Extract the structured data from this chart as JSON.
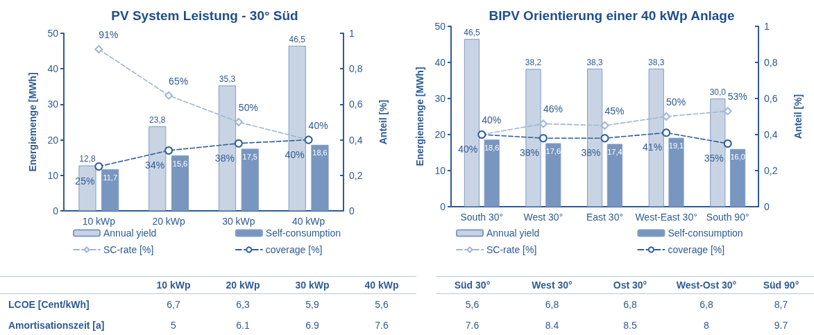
{
  "chart_data": [
    {
      "type": "bar",
      "title": "PV System Leistung - 30° Süd",
      "ylabel": "Energiemenge [MWh]",
      "y2label": "Anteil [%]",
      "categories": [
        "10 kWp",
        "20 kWp",
        "30 kWp",
        "40 kWp"
      ],
      "series": [
        {
          "name": "Annual yield",
          "color": "#c8d4e4",
          "values": [
            12.8,
            23.8,
            35.3,
            46.5
          ],
          "value_labels": [
            "12,8",
            "23,8",
            "35,3",
            "46,5"
          ]
        },
        {
          "name": "Self-consumption",
          "color": "#7896bf",
          "values": [
            11.7,
            15.6,
            17.5,
            18.6
          ],
          "value_labels": [
            "11,7",
            "15,6",
            "17,5",
            "18,6"
          ]
        },
        {
          "name": "SC-rate [%]",
          "type": "line",
          "axis": "y2",
          "color": "#9fb5d4",
          "marker": "diamond",
          "line_style": "dashed",
          "values": [
            0.91,
            0.65,
            0.5,
            0.4
          ],
          "value_labels": [
            "91%",
            "65%",
            "50%",
            "40%"
          ]
        },
        {
          "name": "coverage [%]",
          "type": "line",
          "axis": "y2",
          "color": "#2f5e9c",
          "marker": "circle",
          "line_style": "dashed",
          "values": [
            0.25,
            0.34,
            0.38,
            0.4
          ],
          "value_labels": [
            "25%",
            "34%",
            "38%",
            "40%"
          ]
        }
      ],
      "ylim": [
        0,
        50
      ],
      "yticks": [
        0,
        10,
        20,
        30,
        40,
        50
      ],
      "y2lim": [
        0,
        1
      ],
      "y2ticks": [
        {
          "value": 0,
          "label": "0"
        },
        {
          "value": 0.2,
          "label": "0,2"
        },
        {
          "value": 0.4,
          "label": "0,4"
        },
        {
          "value": 0.6,
          "label": "0,6"
        },
        {
          "value": 0.8,
          "label": "0,8"
        },
        {
          "value": 1,
          "label": "1"
        }
      ],
      "grid": false,
      "legend": "bottom",
      "annotations": [
        "10 kWp",
        "20 kWp",
        "30 kWp",
        "40 kWp",
        "LCOE [Cent/kWh]",
        "6,7",
        "6,3",
        "5,9",
        "5,6",
        "Amortisationszeit [a]",
        "5",
        "6.1",
        "6.9",
        "7.6"
      ]
    },
    {
      "type": "bar",
      "title": "BIPV Orientierung einer 40 kWp Anlage",
      "ylabel": "Energiemenge [MWh]",
      "y2label": "Anteil [%]",
      "categories": [
        "South 30°",
        "West 30°",
        "East 30°",
        "West-East 30°",
        "South 90°"
      ],
      "series": [
        {
          "name": "Annual yield",
          "color": "#c8d4e4",
          "values": [
            46.5,
            38.2,
            38.3,
            38.3,
            30.0
          ],
          "value_labels": [
            "46,5",
            "38,2",
            "38,3",
            "38,3",
            "30,0"
          ]
        },
        {
          "name": "Self-consumption",
          "color": "#7896bf",
          "values": [
            18.6,
            17.6,
            17.4,
            19.1,
            16.0
          ],
          "value_labels": [
            "18,6",
            "17,6",
            "17,4",
            "19,1",
            "16,0"
          ]
        },
        {
          "name": "SC-rate [%]",
          "type": "line",
          "axis": "y2",
          "color": "#9fb5d4",
          "marker": "diamond",
          "line_style": "dashed",
          "values": [
            0.4,
            0.46,
            0.45,
            0.5,
            0.53
          ],
          "value_labels": [
            "40%",
            "46%",
            "45%",
            "50%",
            "53%"
          ]
        },
        {
          "name": "coverage [%]",
          "type": "line",
          "axis": "y2",
          "color": "#2f5e9c",
          "marker": "circle",
          "line_style": "dashed",
          "values": [
            0.4,
            0.38,
            0.38,
            0.41,
            0.35
          ],
          "value_labels": [
            "40%",
            "38%",
            "38%",
            "41%",
            "35%"
          ]
        }
      ],
      "ylim": [
        0,
        50
      ],
      "yticks": [
        0,
        10,
        20,
        30,
        40,
        50
      ],
      "y2lim": [
        0,
        1
      ],
      "y2ticks": [
        {
          "value": 0,
          "label": "0"
        },
        {
          "value": 0.2,
          "label": "0,2"
        },
        {
          "value": 0.4,
          "label": "0,4"
        },
        {
          "value": 0.6,
          "label": "0,6"
        },
        {
          "value": 0.8,
          "label": "0,8"
        },
        {
          "value": 1,
          "label": "1"
        }
      ],
      "grid": false,
      "legend": "bottom",
      "annotations": [
        "Süd 30°",
        "West 30°",
        "Ost 30°",
        "West-Ost 30°",
        "Süd 90°",
        "5,6",
        "6,8",
        "6,8",
        "6,8",
        "8,7",
        "7.6",
        "8.4",
        "8.5",
        "8",
        "9.7"
      ]
    }
  ]
}
